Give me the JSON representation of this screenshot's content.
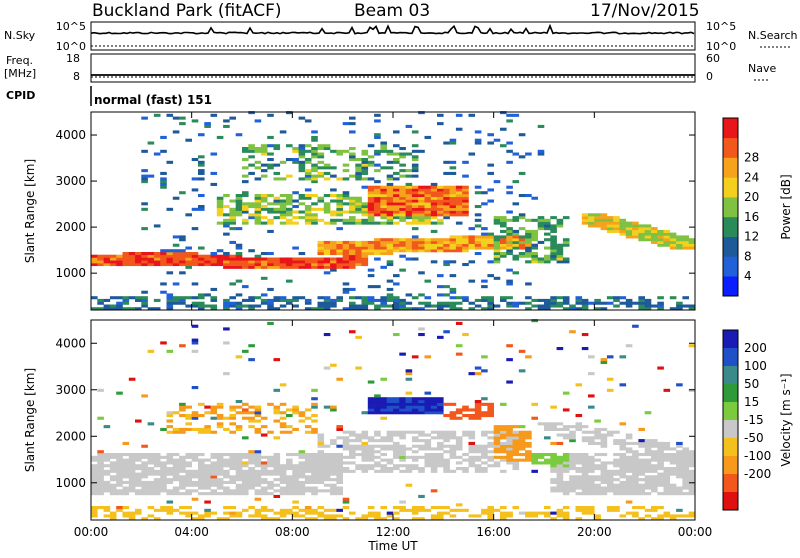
{
  "header": {
    "station": "Buckland Park (fitACF)",
    "beam": "Beam 03",
    "date": "17/Nov/2015"
  },
  "noise_panel": {
    "left_label": "N.Sky",
    "right_label": "N.Search",
    "left_ticks": [
      "10^5",
      "10^0"
    ],
    "right_ticks": [
      "10^5",
      "10^0"
    ]
  },
  "freq_panel": {
    "left_label_line1": "Freq.",
    "left_label_line2": "[MHz]",
    "right_label": "Nave",
    "left_ticks": [
      "18",
      "8"
    ],
    "right_ticks": [
      "60",
      "0"
    ]
  },
  "cpid": {
    "label": "CPID",
    "mode": "normal (fast) 151"
  },
  "chart_data": [
    {
      "type": "heatmap",
      "name": "power",
      "ylabel": "Slant Range [km]",
      "y_ticks": [
        "1000",
        "2000",
        "3000",
        "4000"
      ],
      "ylim": [
        200,
        4500
      ],
      "x_ticks": [
        "00:00",
        "04:00",
        "08:00",
        "12:00",
        "16:00",
        "20:00",
        "00:00"
      ],
      "xlim_hours": [
        0,
        24
      ],
      "colorbar": {
        "label": "Power [dB]",
        "ticks": [
          "4",
          "8",
          "12",
          "16",
          "20",
          "24",
          "28"
        ],
        "colors": [
          "#0a1eff",
          "#2060d8",
          "#1e5a9a",
          "#2a8a5a",
          "#7fc241",
          "#f4d01e",
          "#f7a21c",
          "#f2571b",
          "#e8151b"
        ]
      }
    },
    {
      "type": "heatmap",
      "name": "velocity",
      "ylabel": "Slant Range [km]",
      "y_ticks": [
        "1000",
        "2000",
        "3000",
        "4000"
      ],
      "ylim": [
        200,
        4500
      ],
      "x_ticks": [
        "00:00",
        "04:00",
        "08:00",
        "12:00",
        "16:00",
        "20:00",
        "00:00"
      ],
      "xlim_hours": [
        0,
        24
      ],
      "xlabel": "Time UT",
      "colorbar": {
        "label": "Velocity [m s⁻¹]",
        "ticks": [
          "200",
          "100",
          "50",
          "15",
          "-15",
          "-50",
          "-100",
          "-200"
        ],
        "colors": [
          "#1a1ab4",
          "#2050c8",
          "#3a8a8a",
          "#2e9a3a",
          "#7acb3e",
          "#c8c8c8",
          "#f4c01e",
          "#f79a1c",
          "#f2571b",
          "#e01010"
        ]
      }
    }
  ]
}
